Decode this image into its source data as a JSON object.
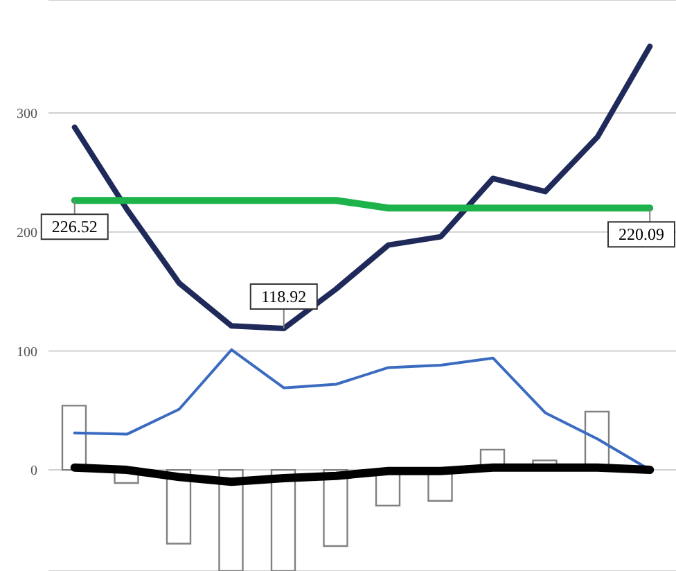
{
  "chart_data": {
    "type": "line",
    "categories": [
      null,
      null,
      null,
      null,
      null,
      null,
      null,
      null,
      null,
      null,
      null,
      null
    ],
    "series": [
      {
        "type": "bar",
        "color": "#808080",
        "values": [
          54,
          -11,
          -62,
          -85,
          -85,
          -64,
          -30,
          -26,
          17,
          8,
          49,
          null
        ]
      },
      {
        "color": "#1f2a5a",
        "values": [
          288,
          219,
          157,
          121,
          118.92,
          152,
          189,
          196,
          245,
          234,
          280,
          356
        ],
        "value_labels": [
          null,
          null,
          null,
          null,
          "118.92",
          null,
          null,
          null,
          null,
          null,
          null,
          null
        ]
      },
      {
        "color": "#1db34a",
        "values": [
          226.52,
          226.52,
          226.52,
          226.52,
          226.52,
          226.52,
          220.09,
          220.09,
          220.09,
          220.09,
          220.09,
          220.09
        ],
        "value_labels": [
          "226.52",
          null,
          null,
          null,
          null,
          null,
          null,
          null,
          null,
          null,
          null,
          "220.09"
        ]
      },
      {
        "color": "#3a6bc0",
        "values": [
          31,
          30,
          51,
          101,
          69,
          72,
          86,
          88,
          94,
          48,
          26,
          0
        ]
      },
      {
        "color": "#000000",
        "values": [
          2,
          0,
          -6,
          -10,
          -7,
          -5,
          -1,
          -1,
          2,
          2,
          2,
          0
        ]
      }
    ],
    "ylim": [
      -85,
      395
    ],
    "yticks": [
      0,
      100,
      200,
      300
    ],
    "grid": "y",
    "marker": "none"
  }
}
